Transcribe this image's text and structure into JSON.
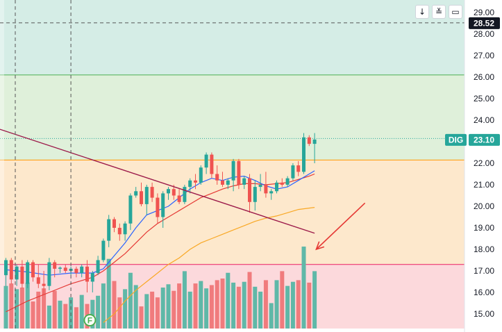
{
  "colors": {
    "up": "#26a69a",
    "down": "#ef5350",
    "zone_top": "#d5ede6",
    "zone_green": "#dff0da",
    "zone_orange": "#fde8cc",
    "zone_red": "#fcd9dc",
    "ma_fast": "#2962ff",
    "ma_mid": "#e53935",
    "ma_slow": "#f9a825",
    "trendline": "#9c1a4a",
    "arrow": "#e53935"
  },
  "toolbar": [
    {
      "icon": "arrow-down-icon",
      "glyph": "↓"
    },
    {
      "icon": "collapse-icon",
      "glyph": "≚"
    },
    {
      "icon": "fullscreen-icon",
      "glyph": "▭"
    }
  ],
  "price_scale": {
    "labels": [
      "29.00",
      "28.00",
      "27.00",
      "26.00",
      "25.00",
      "24.00",
      "23.00",
      "22.00",
      "21.00",
      "20.00",
      "19.00",
      "18.00",
      "17.00",
      "16.00",
      "15.00"
    ],
    "ticks": [
      29,
      28,
      27,
      26,
      25,
      24,
      23,
      22,
      21,
      20,
      19,
      18,
      17,
      16,
      15
    ],
    "crosshair_price_label": "28.52",
    "crosshair_price": 28.52,
    "last_price_label": "23.10",
    "last_price": 23.1,
    "symbol": "DIG"
  },
  "levels": {
    "zone_green_top": 26.1,
    "orange_top": 22.15,
    "red_top": 17.3,
    "dotted_price": 23.15
  },
  "event_marker": "F",
  "chart_data": {
    "type": "candlestick",
    "ylim": [
      14.5,
      29.5
    ],
    "candles": [
      [
        16.8,
        17.6,
        16.3,
        17.5
      ],
      [
        17.5,
        17.6,
        16.4,
        16.6
      ],
      [
        16.6,
        17.3,
        16.3,
        17.2
      ],
      [
        17.2,
        17.5,
        16.2,
        16.4
      ],
      [
        16.4,
        17.5,
        16.2,
        17.4
      ],
      [
        17.4,
        17.5,
        16.5,
        16.7
      ],
      [
        16.7,
        17.3,
        16.2,
        16.4
      ],
      [
        16.4,
        17.0,
        15.9,
        16.3
      ],
      [
        16.3,
        17.6,
        16.1,
        17.4
      ],
      [
        17.4,
        17.5,
        16.7,
        17.1
      ],
      [
        17.1,
        17.2,
        16.9,
        17.15
      ],
      [
        17.15,
        17.3,
        16.9,
        17.0
      ],
      [
        17.0,
        17.2,
        16.8,
        17.1
      ],
      [
        17.1,
        17.2,
        16.7,
        16.9
      ],
      [
        16.9,
        17.3,
        16.7,
        17.2
      ],
      [
        17.2,
        17.5,
        16.0,
        16.5
      ],
      [
        16.5,
        17.0,
        16.0,
        16.9
      ],
      [
        16.9,
        17.7,
        16.8,
        17.5
      ],
      [
        17.5,
        18.5,
        17.4,
        18.4
      ],
      [
        18.4,
        19.6,
        18.1,
        19.4
      ],
      [
        19.4,
        19.5,
        18.8,
        19.0
      ],
      [
        19.0,
        19.2,
        18.4,
        18.7
      ],
      [
        18.7,
        19.3,
        18.4,
        19.2
      ],
      [
        19.2,
        20.6,
        18.9,
        20.5
      ],
      [
        20.5,
        20.9,
        20.4,
        20.7
      ],
      [
        20.7,
        21.1,
        20.0,
        20.1
      ],
      [
        20.1,
        21.0,
        19.6,
        20.9
      ],
      [
        20.9,
        21.1,
        20.2,
        20.4
      ],
      [
        20.4,
        20.6,
        19.2,
        19.5
      ],
      [
        19.5,
        20.7,
        19.0,
        20.6
      ],
      [
        20.6,
        20.9,
        20.3,
        20.8
      ],
      [
        20.8,
        21.0,
        20.3,
        20.5
      ],
      [
        20.5,
        20.8,
        20.1,
        20.2
      ],
      [
        20.2,
        21.0,
        20.1,
        20.9
      ],
      [
        20.9,
        21.3,
        20.6,
        21.2
      ],
      [
        21.2,
        21.5,
        20.8,
        21.1
      ],
      [
        21.1,
        21.9,
        21.0,
        21.8
      ],
      [
        21.8,
        22.5,
        21.5,
        22.4
      ],
      [
        22.4,
        22.5,
        21.3,
        21.5
      ],
      [
        21.5,
        21.9,
        21.0,
        21.2
      ],
      [
        21.2,
        21.6,
        20.9,
        21.0
      ],
      [
        21.0,
        21.3,
        20.8,
        21.2
      ],
      [
        21.2,
        22.2,
        20.7,
        22.1
      ],
      [
        22.1,
        22.2,
        20.8,
        21.0
      ],
      [
        21.0,
        21.4,
        20.8,
        21.3
      ],
      [
        21.3,
        21.5,
        19.7,
        20.2
      ],
      [
        20.2,
        21.2,
        19.8,
        20.9
      ],
      [
        20.9,
        21.5,
        20.7,
        21.0
      ],
      [
        21.0,
        21.6,
        20.4,
        20.6
      ],
      [
        20.6,
        20.8,
        20.3,
        20.7
      ],
      [
        20.7,
        21.2,
        20.6,
        21.1
      ],
      [
        21.1,
        21.3,
        20.9,
        21.0
      ],
      [
        21.0,
        21.4,
        20.9,
        21.3
      ],
      [
        21.3,
        22.0,
        21.2,
        21.9
      ],
      [
        21.9,
        22.1,
        21.4,
        21.6
      ],
      [
        21.6,
        23.4,
        21.5,
        23.2
      ],
      [
        23.2,
        23.3,
        22.8,
        22.9
      ],
      [
        22.9,
        23.4,
        22.0,
        23.1
      ]
    ],
    "volume_relative": [
      0.52,
      0.55,
      0.48,
      0.5,
      0.56,
      0.33,
      0.45,
      0.49,
      0.28,
      0.46,
      0.34,
      0.3,
      0.38,
      0.26,
      0.41,
      0.3,
      0.35,
      0.4,
      0.55,
      0.85,
      0.58,
      0.38,
      0.48,
      0.68,
      0.53,
      0.27,
      0.42,
      0.45,
      0.38,
      0.5,
      0.54,
      0.46,
      0.55,
      0.7,
      0.45,
      0.55,
      0.58,
      0.49,
      0.53,
      0.59,
      0.61,
      0.68,
      0.56,
      0.51,
      0.57,
      0.69,
      0.51,
      0.45,
      0.59,
      0.31,
      0.59,
      0.7,
      0.52,
      0.57,
      0.59,
      1.0,
      0.56,
      0.7
    ],
    "ma_fast": [
      [
        0,
        17.05
      ],
      [
        4,
        16.95
      ],
      [
        8,
        16.8
      ],
      [
        12,
        16.9
      ],
      [
        16,
        16.9
      ],
      [
        18,
        17.1
      ],
      [
        20,
        17.7
      ],
      [
        22,
        18.3
      ],
      [
        24,
        19.0
      ],
      [
        26,
        19.6
      ],
      [
        28,
        19.8
      ],
      [
        30,
        20.0
      ],
      [
        32,
        20.4
      ],
      [
        34,
        20.8
      ],
      [
        36,
        21.1
      ],
      [
        38,
        21.3
      ],
      [
        40,
        21.2
      ],
      [
        42,
        21.35
      ],
      [
        44,
        21.4
      ],
      [
        46,
        21.2
      ],
      [
        48,
        20.95
      ],
      [
        50,
        20.8
      ],
      [
        52,
        20.9
      ],
      [
        54,
        21.2
      ],
      [
        56,
        21.5
      ],
      [
        57,
        21.65
      ]
    ],
    "ma_mid": [
      [
        0,
        15.1
      ],
      [
        4,
        15.6
      ],
      [
        8,
        16.0
      ],
      [
        12,
        16.4
      ],
      [
        16,
        16.7
      ],
      [
        18,
        17.0
      ],
      [
        20,
        17.4
      ],
      [
        22,
        17.8
      ],
      [
        24,
        18.3
      ],
      [
        26,
        18.8
      ],
      [
        28,
        19.2
      ],
      [
        30,
        19.5
      ],
      [
        32,
        19.8
      ],
      [
        34,
        20.1
      ],
      [
        36,
        20.4
      ],
      [
        38,
        20.6
      ],
      [
        40,
        20.8
      ],
      [
        42,
        20.95
      ],
      [
        44,
        21.05
      ],
      [
        46,
        21.05
      ],
      [
        48,
        21.0
      ],
      [
        50,
        21.05
      ],
      [
        52,
        21.1
      ],
      [
        54,
        21.25
      ],
      [
        56,
        21.4
      ],
      [
        57,
        21.5
      ]
    ],
    "ma_slow": [
      [
        18,
        14.6
      ],
      [
        20,
        15.0
      ],
      [
        22,
        15.6
      ],
      [
        24,
        16.1
      ],
      [
        26,
        16.5
      ],
      [
        28,
        16.9
      ],
      [
        30,
        17.3
      ],
      [
        32,
        17.6
      ],
      [
        34,
        18.0
      ],
      [
        36,
        18.3
      ],
      [
        38,
        18.5
      ],
      [
        40,
        18.7
      ],
      [
        42,
        18.9
      ],
      [
        44,
        19.1
      ],
      [
        46,
        19.3
      ],
      [
        48,
        19.45
      ],
      [
        50,
        19.55
      ],
      [
        52,
        19.7
      ],
      [
        54,
        19.85
      ],
      [
        57,
        19.95
      ]
    ],
    "trendline": [
      [
        -2,
        23.65
      ],
      [
        57,
        18.75
      ]
    ],
    "annotation_arrow": {
      "from": [
        66.3,
        20.15
      ],
      "to": [
        57.3,
        18.0
      ]
    },
    "event_bar_index": 15.5,
    "crosshair_bar_index": 12
  }
}
